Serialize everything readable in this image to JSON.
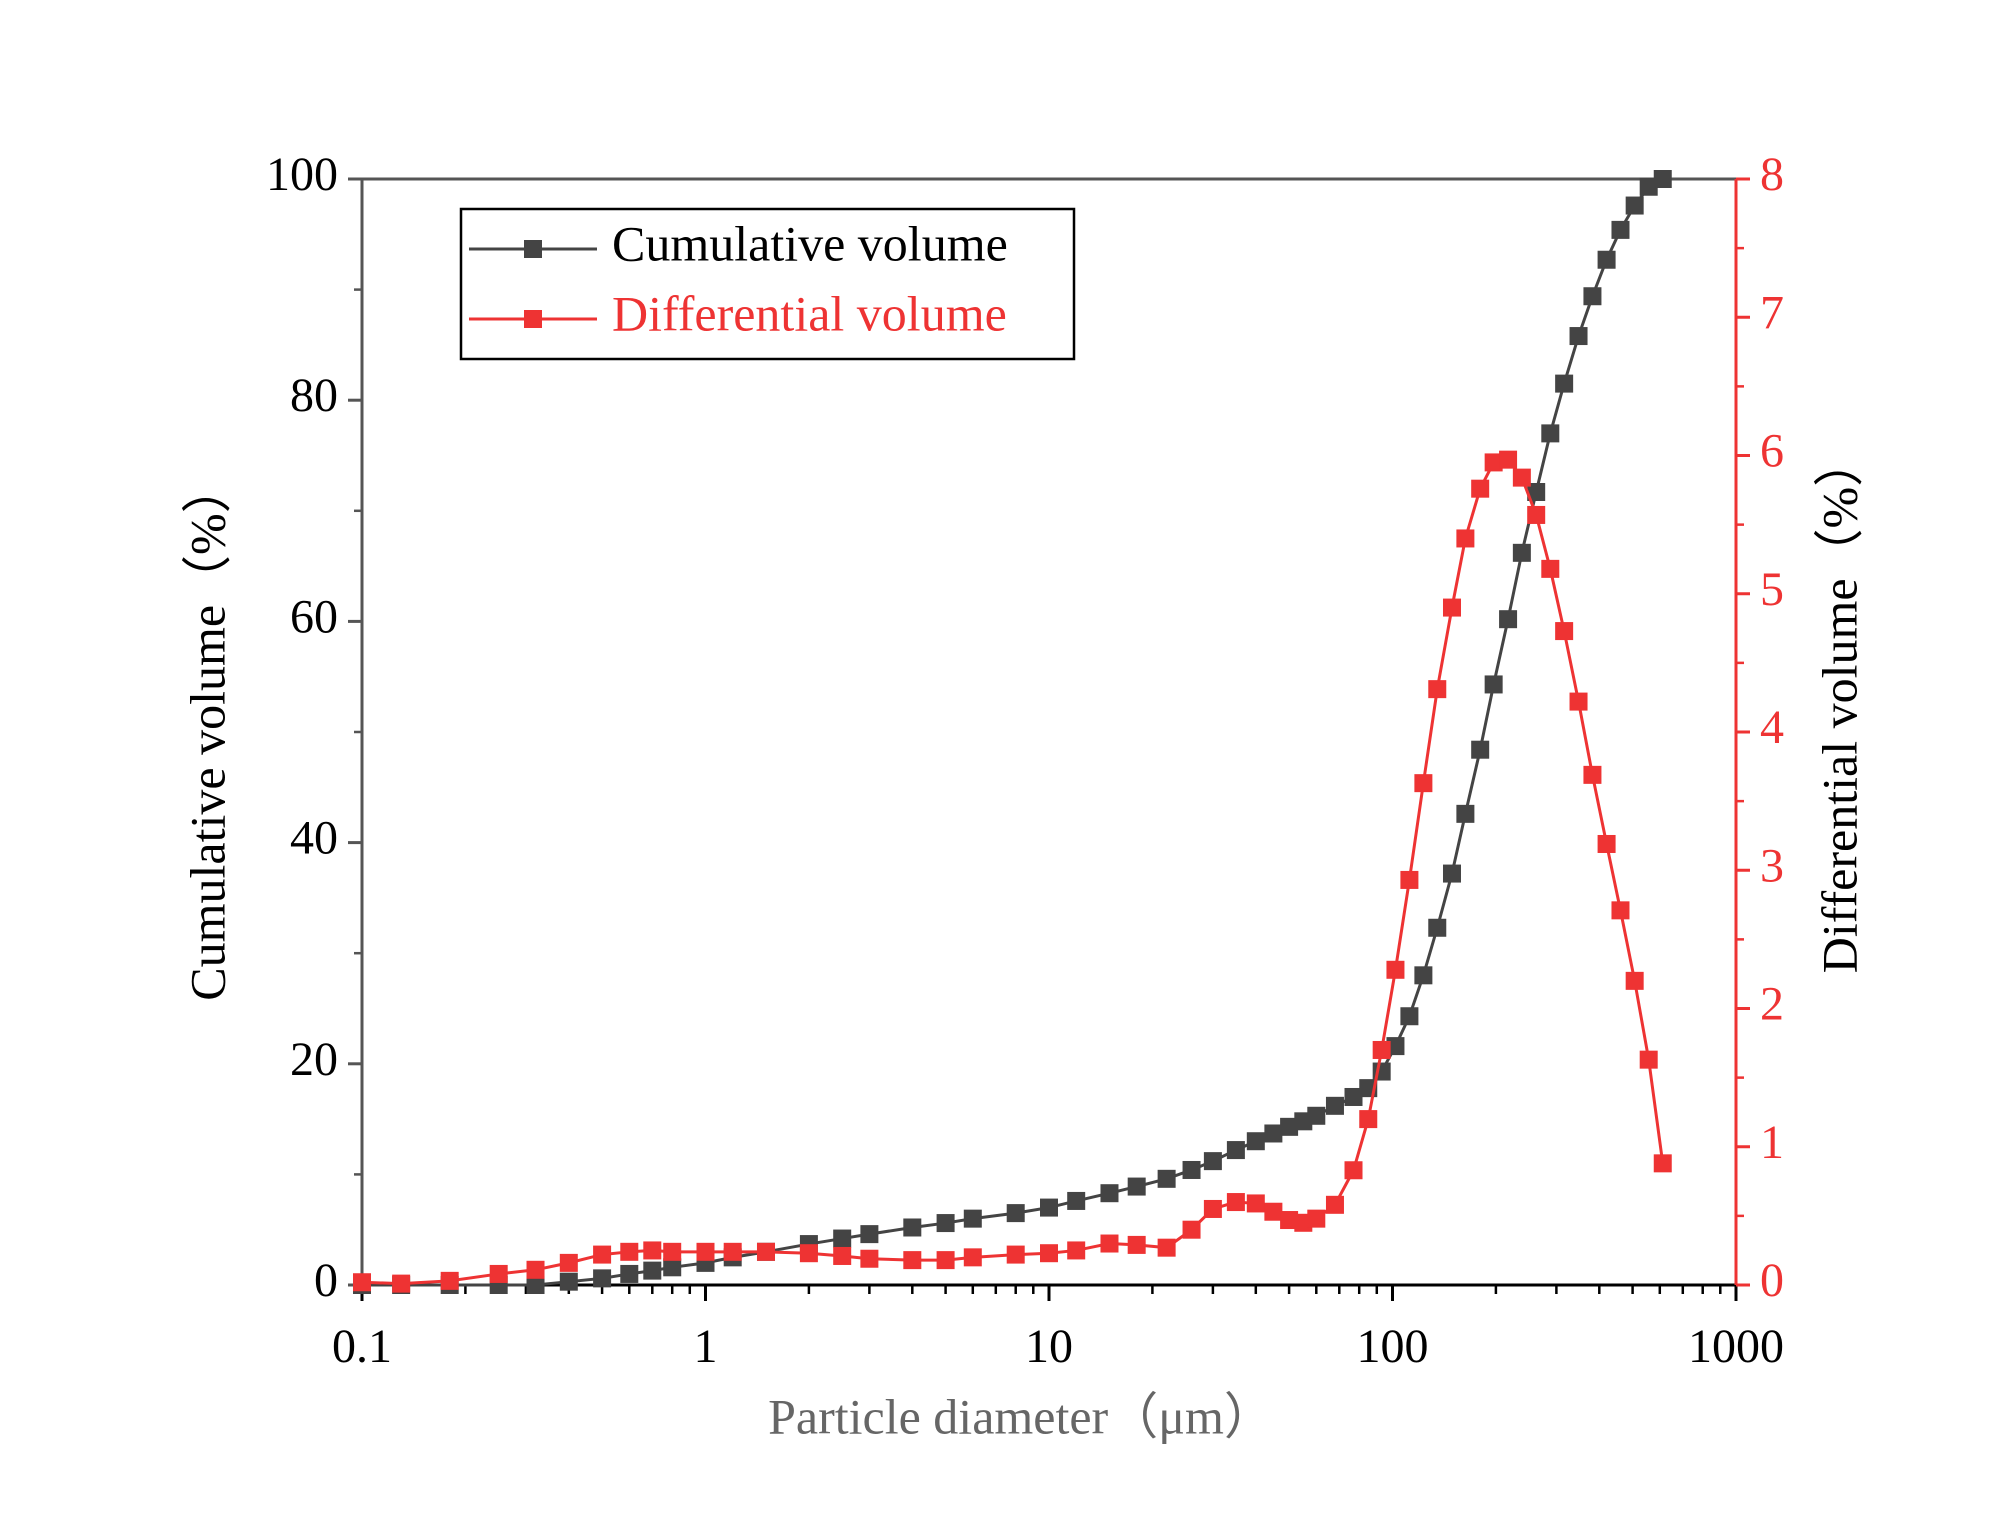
{
  "chart_data": {
    "type": "line",
    "xlabel": "Particle diameter（μm）",
    "ylabel": "Cumulative volume（%）",
    "y2label": "Differential volume（%）",
    "xscale": "log",
    "xlim": [
      0.1,
      1000
    ],
    "xticks": [
      0.1,
      1,
      10,
      100,
      1000
    ],
    "ylim": [
      0,
      100
    ],
    "yticks": [
      0,
      20,
      40,
      60,
      80,
      100
    ],
    "y2lim": [
      0,
      8
    ],
    "y2ticks": [
      0,
      1,
      2,
      3,
      4,
      5,
      6,
      7,
      8
    ],
    "legend": "upper left",
    "x": [
      0.1,
      0.13,
      0.18,
      0.25,
      0.32,
      0.4,
      0.5,
      0.6,
      0.7,
      0.8,
      1,
      1.2,
      1.5,
      2,
      2.5,
      3,
      4,
      5,
      6,
      8,
      10,
      12,
      15,
      18,
      22,
      26,
      30,
      35,
      40,
      45,
      50,
      55,
      60,
      68,
      77,
      85,
      93,
      102,
      112,
      123,
      135,
      149,
      163,
      180,
      197,
      217,
      238,
      262,
      288,
      316,
      348,
      382,
      420,
      461,
      507,
      557,
      612
    ],
    "series": [
      {
        "name": "Cumulative volume",
        "color": "#444444",
        "axis": "y",
        "values": [
          0,
          0,
          0,
          0,
          0,
          0.3,
          0.6,
          1.0,
          1.3,
          1.6,
          2.0,
          2.5,
          3.0,
          3.7,
          4.2,
          4.6,
          5.2,
          5.6,
          6.0,
          6.5,
          7.0,
          7.6,
          8.3,
          8.9,
          9.6,
          10.4,
          11.2,
          12.2,
          13.0,
          13.7,
          14.3,
          14.8,
          15.3,
          16.2,
          17.0,
          17.8,
          19.3,
          21.6,
          24.3,
          28,
          32.3,
          37.2,
          42.6,
          48.4,
          54.3,
          60.2,
          66.2,
          71.7,
          77,
          81.5,
          85.8,
          89.4,
          92.7,
          95.4,
          97.6,
          99.3,
          100
        ]
      },
      {
        "name": "Differential volume",
        "color": "#ee3333",
        "axis": "y2",
        "values": [
          0.02,
          0.01,
          0.03,
          0.08,
          0.11,
          0.16,
          0.22,
          0.24,
          0.25,
          0.24,
          0.24,
          0.24,
          0.24,
          0.23,
          0.21,
          0.19,
          0.18,
          0.18,
          0.2,
          0.22,
          0.23,
          0.25,
          0.3,
          0.29,
          0.27,
          0.4,
          0.55,
          0.6,
          0.59,
          0.53,
          0.47,
          0.45,
          0.48,
          0.58,
          0.83,
          1.2,
          1.7,
          2.28,
          2.93,
          3.63,
          4.31,
          4.9,
          5.4,
          5.76,
          5.95,
          5.97,
          5.84,
          5.57,
          5.18,
          4.73,
          4.22,
          3.69,
          3.19,
          2.71,
          2.2,
          1.63,
          0.88
        ]
      }
    ]
  }
}
